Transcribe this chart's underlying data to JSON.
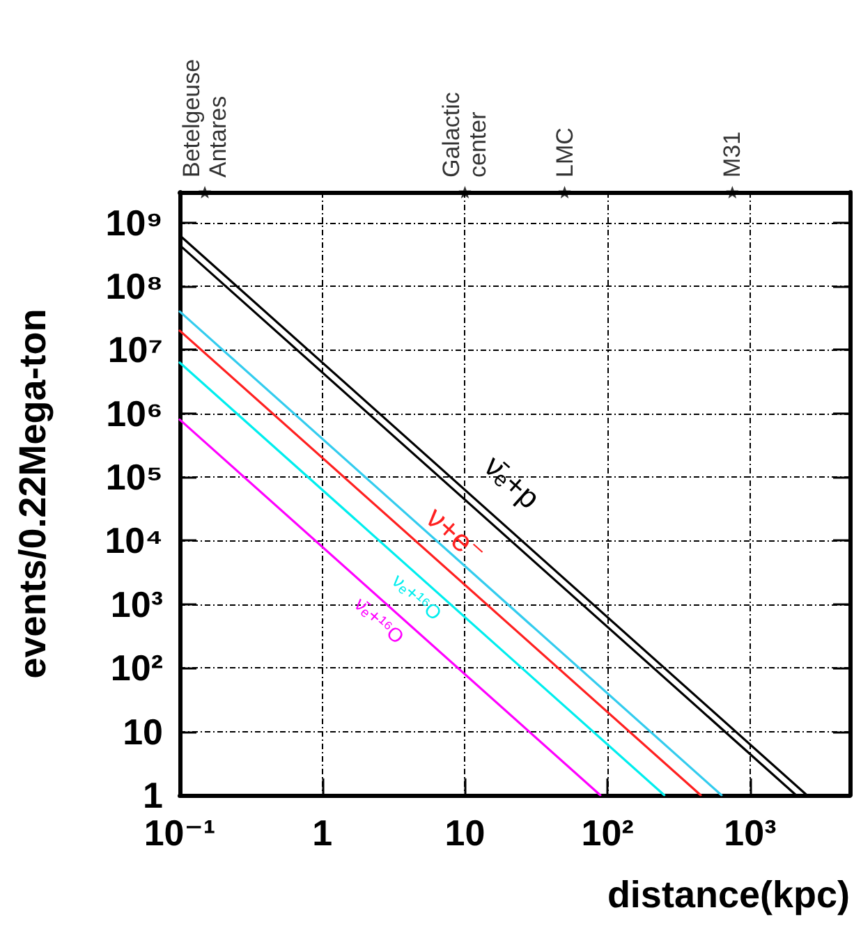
{
  "chart_data": {
    "type": "line",
    "xlabel": "distance(kpc)",
    "ylabel": "events/0.22Mega-ton",
    "log": "xy",
    "grid": true,
    "marker": "none",
    "line_style": "solid",
    "xlim": [
      0.1,
      5000
    ],
    "ylim": [
      1,
      3000000000
    ],
    "xticks": [
      {
        "value": 0.1,
        "label": "10⁻¹"
      },
      1,
      10,
      {
        "value": 100,
        "label": "10²"
      },
      {
        "value": 1000,
        "label": "10³"
      }
    ],
    "yticks": [
      1,
      10,
      {
        "value": 100,
        "label": "10²"
      },
      {
        "value": 1000,
        "label": "10³"
      },
      {
        "value": 10000,
        "label": "10⁴"
      },
      {
        "value": 100000,
        "label": "10⁵"
      },
      {
        "value": 1000000,
        "label": "10⁶"
      },
      {
        "value": 10000000,
        "label": "10⁷"
      },
      {
        "value": 100000000,
        "label": "10⁸"
      },
      {
        "value": 1000000000,
        "label": "10⁹"
      }
    ],
    "series": [
      {
        "type": "scatter",
        "marker": "star",
        "color": "#000000",
        "x": [
          0.15,
          10,
          50,
          750
        ],
        "values": [
          3000000000,
          3000000000,
          3000000000,
          3000000000
        ],
        "value_labels": [
          "Betelgeuse\nAntares",
          "Galactic\ncenter",
          "LMC",
          "M31"
        ]
      },
      {
        "name": "ν̄ₑ+p",
        "color": "#000000",
        "x": [
          0.1,
          2500
        ],
        "values": [
          630000000,
          1
        ]
      },
      {
        "color": "#000000",
        "x": [
          0.1,
          2100
        ],
        "values": [
          440000000,
          1
        ]
      },
      {
        "color": "#33ccee",
        "x": [
          0.1,
          630
        ],
        "values": [
          40000000,
          1
        ]
      },
      {
        "name": "ν+e⁻",
        "color": "#ff2020",
        "x": [
          0.1,
          450
        ],
        "values": [
          20000000,
          1
        ]
      },
      {
        "name": "νₑ+¹⁶O",
        "color": "#00eeee",
        "x": [
          0.1,
          250
        ],
        "values": [
          6300000,
          1
        ]
      },
      {
        "name": "ν̄ₑ+¹⁶O",
        "color": "#ff00ff",
        "x": [
          0.1,
          89
        ],
        "values": [
          800000,
          1
        ]
      }
    ]
  }
}
